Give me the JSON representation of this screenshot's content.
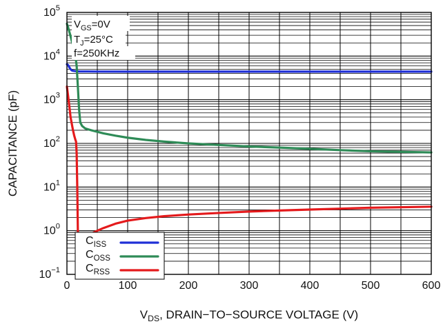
{
  "chart_data": {
    "type": "line",
    "y_scale": "log",
    "xlim": [
      0,
      600
    ],
    "ylim": [
      0.1,
      100000
    ],
    "grid": true,
    "x_ticks": [
      "0",
      "100",
      "200",
      "300",
      "400",
      "500",
      "600"
    ],
    "y_ticks": [
      {
        "base": "10",
        "exp": "−1"
      },
      {
        "base": "10",
        "exp": "0"
      },
      {
        "base": "10",
        "exp": "1"
      },
      {
        "base": "10",
        "exp": "2"
      },
      {
        "base": "10",
        "exp": "3"
      },
      {
        "base": "10",
        "exp": "4"
      },
      {
        "base": "10",
        "exp": "5"
      }
    ],
    "xlabel": {
      "main": "V",
      "sub": "DS",
      "rest": ", DRAIN−TO−SOURCE VOLTAGE (V)"
    },
    "ylabel": "CAPACITANCE (pF)",
    "annotations": [
      {
        "main": "V",
        "sub": "GS",
        "rest": "=0V"
      },
      {
        "main": "T",
        "sub": "J",
        "rest": "=25°C"
      },
      {
        "main": "f=250KHz",
        "sub": "",
        "rest": ""
      }
    ],
    "legend_position": "bottom-left",
    "series": [
      {
        "name": {
          "main": "C",
          "sub": "ISS"
        },
        "color": "#1f2fd6",
        "points": [
          [
            0,
            6500
          ],
          [
            2,
            6200
          ],
          [
            4,
            5500
          ],
          [
            6,
            5000
          ],
          [
            8,
            4700
          ],
          [
            10,
            4600
          ],
          [
            15,
            4500
          ],
          [
            20,
            4450
          ],
          [
            50,
            4420
          ],
          [
            100,
            4400
          ],
          [
            200,
            4400
          ],
          [
            300,
            4400
          ],
          [
            400,
            4400
          ],
          [
            500,
            4400
          ],
          [
            600,
            4400
          ]
        ]
      },
      {
        "name": {
          "main": "C",
          "sub": "OSS"
        },
        "color": "#2e8b57",
        "points": [
          [
            0,
            55000
          ],
          [
            2,
            45000
          ],
          [
            5,
            32000
          ],
          [
            8,
            22000
          ],
          [
            10,
            18000
          ],
          [
            12,
            14000
          ],
          [
            14,
            10000
          ],
          [
            16,
            6000
          ],
          [
            18,
            2000
          ],
          [
            20,
            600
          ],
          [
            22,
            300
          ],
          [
            25,
            250
          ],
          [
            30,
            220
          ],
          [
            40,
            200
          ],
          [
            60,
            170
          ],
          [
            80,
            150
          ],
          [
            100,
            135
          ],
          [
            130,
            120
          ],
          [
            160,
            110
          ],
          [
            200,
            100
          ],
          [
            250,
            92
          ],
          [
            300,
            85
          ],
          [
            350,
            80
          ],
          [
            400,
            75
          ],
          [
            450,
            70
          ],
          [
            500,
            66
          ],
          [
            550,
            64
          ],
          [
            600,
            62
          ]
        ]
      },
      {
        "name": {
          "main": "C",
          "sub": "RSS"
        },
        "color": "#e41a1c",
        "points": [
          [
            0,
            2000
          ],
          [
            2,
            1200
          ],
          [
            4,
            700
          ],
          [
            6,
            400
          ],
          [
            8,
            280
          ],
          [
            10,
            200
          ],
          [
            12,
            150
          ],
          [
            14,
            120
          ],
          [
            15,
            110
          ],
          [
            16,
            60
          ],
          [
            17,
            10
          ],
          [
            18,
            1
          ],
          [
            19,
            0.22
          ],
          [
            20,
            0.3
          ],
          [
            25,
            0.5
          ],
          [
            30,
            0.62
          ],
          [
            40,
            0.85
          ],
          [
            50,
            1.0
          ],
          [
            60,
            1.15
          ],
          [
            80,
            1.45
          ],
          [
            100,
            1.7
          ],
          [
            130,
            1.95
          ],
          [
            160,
            2.15
          ],
          [
            200,
            2.35
          ],
          [
            250,
            2.55
          ],
          [
            300,
            2.75
          ],
          [
            350,
            2.9
          ],
          [
            400,
            3.05
          ],
          [
            450,
            3.2
          ],
          [
            500,
            3.35
          ],
          [
            550,
            3.45
          ],
          [
            600,
            3.55
          ]
        ]
      }
    ]
  }
}
